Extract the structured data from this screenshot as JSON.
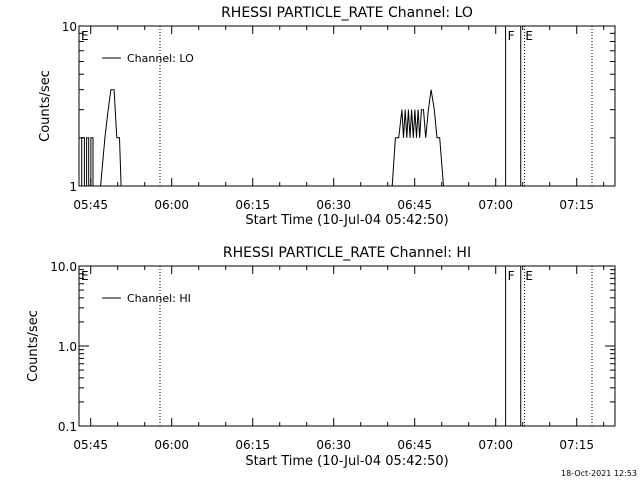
{
  "footer_timestamp": "18-Oct-2021 12:53",
  "chart_data": [
    {
      "type": "line",
      "title": "RHESSI PARTICLE_RATE Channel: LO",
      "xlabel": "Start Time (10-Jul-04 05:42:50)",
      "ylabel": "Counts/sec",
      "y_scale": "log",
      "ylim": [
        1,
        10
      ],
      "y_ticks": [
        "1",
        "10"
      ],
      "x_ticks": [
        "05:45",
        "06:00",
        "06:15",
        "06:30",
        "06:45",
        "07:00",
        "07:15"
      ],
      "legend": "Channel: LO",
      "legend_position": "top-left",
      "markers": [
        {
          "label": "E",
          "minute": 0
        },
        {
          "label": "F",
          "minute": 79
        },
        {
          "label": "E",
          "minute": 82.3
        }
      ],
      "dotted_lines": [
        15,
        82.5,
        95
      ],
      "solid_lines": [
        79,
        81.8
      ],
      "series": [
        {
          "name": "Channel: LO",
          "points": [
            [
              0.5,
              1
            ],
            [
              0.5,
              2
            ],
            [
              1.0,
              2
            ],
            [
              1.0,
              1
            ],
            [
              1.4,
              1
            ],
            [
              1.4,
              2
            ],
            [
              1.8,
              2
            ],
            [
              1.8,
              1
            ],
            [
              2.2,
              1
            ],
            [
              2.2,
              2
            ],
            [
              2.6,
              2
            ],
            [
              2.6,
              1
            ],
            [
              4.0,
              1
            ],
            [
              4.8,
              2
            ],
            [
              5.4,
              3
            ],
            [
              5.9,
              4
            ],
            [
              6.5,
              4
            ],
            [
              7.0,
              2
            ],
            [
              7.5,
              2
            ],
            [
              7.8,
              1
            ],
            [
              58.0,
              1
            ],
            [
              58.6,
              2
            ],
            [
              59.2,
              2
            ],
            [
              59.8,
              3
            ],
            [
              60.1,
              2
            ],
            [
              60.4,
              3
            ],
            [
              60.7,
              2
            ],
            [
              61.0,
              3
            ],
            [
              61.3,
              2
            ],
            [
              61.6,
              3
            ],
            [
              61.9,
              2
            ],
            [
              62.2,
              3
            ],
            [
              62.5,
              2
            ],
            [
              62.8,
              3
            ],
            [
              63.1,
              2
            ],
            [
              63.4,
              3
            ],
            [
              63.8,
              3
            ],
            [
              64.2,
              2
            ],
            [
              64.7,
              3
            ],
            [
              65.2,
              4
            ],
            [
              65.8,
              3
            ],
            [
              66.3,
              2
            ],
            [
              66.8,
              2
            ],
            [
              67.5,
              1
            ]
          ]
        }
      ]
    },
    {
      "type": "line",
      "title": "RHESSI PARTICLE_RATE Channel: HI",
      "xlabel": "Start Time (10-Jul-04 05:42:50)",
      "ylabel": "Counts/sec",
      "y_scale": "log",
      "ylim": [
        0.1,
        10
      ],
      "y_ticks": [
        "0.1",
        "1.0",
        "10.0"
      ],
      "x_ticks": [
        "05:45",
        "06:00",
        "06:15",
        "06:30",
        "06:45",
        "07:00",
        "07:15"
      ],
      "legend": "Channel: HI",
      "legend_position": "top-left",
      "markers": [
        {
          "label": "E",
          "minute": 0
        },
        {
          "label": "F",
          "minute": 79
        },
        {
          "label": "E",
          "minute": 82.3
        }
      ],
      "dotted_lines": [
        15,
        82.5,
        95
      ],
      "solid_lines": [
        79,
        81.8
      ],
      "series": [
        {
          "name": "Channel: HI",
          "points": []
        }
      ]
    }
  ]
}
